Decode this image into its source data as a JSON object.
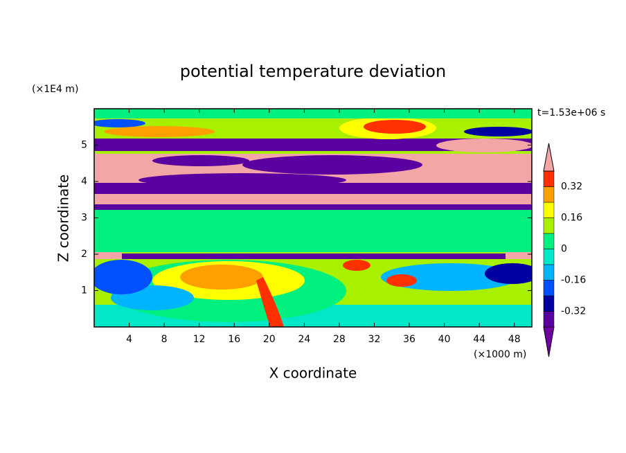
{
  "chart_data": {
    "type": "contour",
    "title": "potential temperature deviation",
    "x_label": "X coordinate",
    "y_label": "Z coordinate",
    "x_unit": "(×1000 m)",
    "y_unit": "(×1E4 m)",
    "annotation": "t=1.53e+06 s",
    "xlim": [
      0,
      50
    ],
    "xticks": [
      4,
      8,
      12,
      16,
      20,
      24,
      28,
      32,
      36,
      40,
      44,
      48
    ],
    "ylim": [
      0,
      6
    ],
    "yticks": [
      1,
      2,
      3,
      4,
      5
    ],
    "colorbar": {
      "levels": [
        -0.4,
        -0.32,
        -0.24,
        -0.16,
        -0.08,
        0,
        0.08,
        0.16,
        0.24,
        0.32,
        0.4
      ],
      "ticks": [
        -0.32,
        -0.16,
        0,
        0.16,
        0.32
      ],
      "colors": [
        "#7000a0",
        "#5a00a0",
        "#0000a0",
        "#0050ff",
        "#00b4ff",
        "#00e8c8",
        "#00f080",
        "#a8f000",
        "#ffff00",
        "#ffa000",
        "#ff3000",
        "#f4a6a6"
      ]
    }
  }
}
